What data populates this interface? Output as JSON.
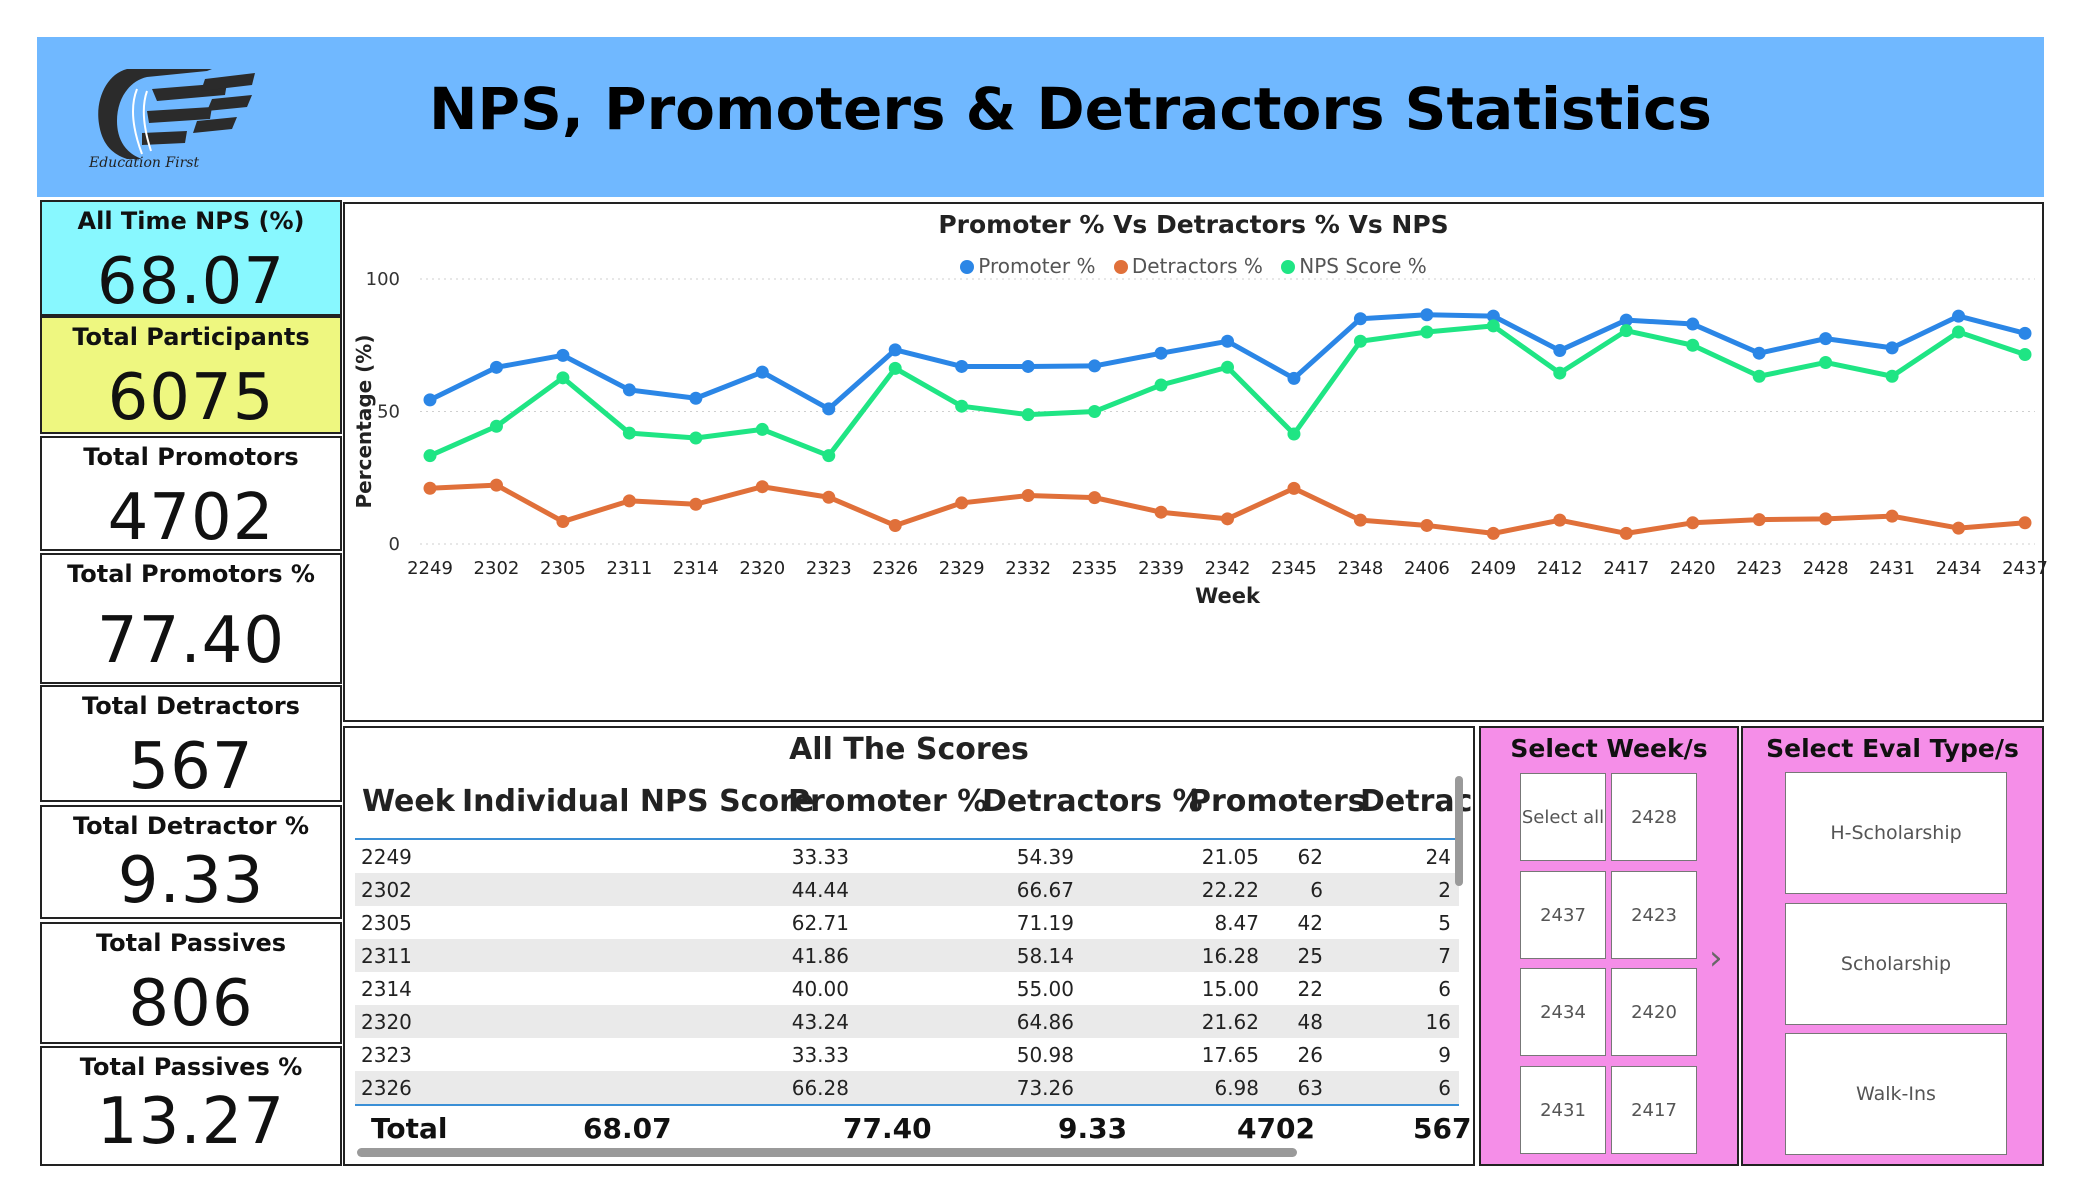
{
  "header": {
    "title": "NPS, Promoters & Detractors Statistics",
    "logo_caption": "Education First"
  },
  "kpis": [
    {
      "label": "All Time NPS (%)",
      "value": "68.07",
      "bg": "#88f8ff"
    },
    {
      "label": "Total Participants",
      "value": "6075",
      "bg": "#eef780"
    },
    {
      "label": "Total Promotors",
      "value": "4702",
      "bg": "#ffffff"
    },
    {
      "label": "Total Promotors %",
      "value": "77.40",
      "bg": "#ffffff"
    },
    {
      "label": "Total Detractors",
      "value": "567",
      "bg": "#ffffff"
    },
    {
      "label": "Total Detractor %",
      "value": "9.33",
      "bg": "#ffffff"
    },
    {
      "label": "Total Passives",
      "value": "806",
      "bg": "#ffffff"
    },
    {
      "label": "Total Passives %",
      "value": "13.27",
      "bg": "#ffffff"
    }
  ],
  "chart_data": {
    "type": "line",
    "title": "Promoter % Vs Detractors % Vs NPS",
    "xlabel": "Week",
    "ylabel": "Percentage (%)",
    "ylim": [
      0,
      100
    ],
    "yticks": [
      "0",
      "50",
      "100"
    ],
    "grid": true,
    "legend_position": "top-center",
    "categories": [
      "2249",
      "2302",
      "2305",
      "2311",
      "2314",
      "2320",
      "2323",
      "2326",
      "2329",
      "2332",
      "2335",
      "2339",
      "2342",
      "2345",
      "2348",
      "2406",
      "2409",
      "2412",
      "2417",
      "2420",
      "2423",
      "2428",
      "2431",
      "2434",
      "2437"
    ],
    "series": [
      {
        "name": "Promoter %",
        "color": "#2b86e6",
        "values": [
          54.39,
          66.67,
          71.19,
          58.14,
          55.0,
          64.86,
          50.98,
          73.26,
          67,
          67,
          67.2,
          72,
          76.5,
          62.5,
          85,
          86.5,
          86,
          73,
          84.5,
          83,
          72,
          77.5,
          74,
          86,
          79.5
        ]
      },
      {
        "name": "Detractors %",
        "color": "#e0703a",
        "values": [
          21.05,
          22.22,
          8.47,
          16.28,
          15.0,
          21.62,
          17.65,
          6.98,
          15.5,
          18.3,
          17.5,
          12,
          9.5,
          21,
          9,
          7,
          4,
          9,
          4,
          8,
          9.2,
          9.5,
          10.5,
          6,
          8
        ]
      },
      {
        "name": "NPS Score %",
        "color": "#1fe584",
        "values": [
          33.33,
          44.44,
          62.71,
          41.86,
          40.0,
          43.24,
          33.33,
          66.28,
          52,
          48.8,
          50,
          60,
          66.7,
          41.5,
          76.5,
          80,
          82.3,
          64.5,
          80.5,
          75,
          63.3,
          68.5,
          63.3,
          80,
          71.5
        ]
      }
    ]
  },
  "table": {
    "title": "All The Scores",
    "columns": [
      "Week",
      "Individual NPS Score",
      "Promoter %",
      "Detractors %",
      "Promoters",
      "Detrac"
    ],
    "rows": [
      [
        "2249",
        "33.33",
        "54.39",
        "21.05",
        "62",
        "24"
      ],
      [
        "2302",
        "44.44",
        "66.67",
        "22.22",
        "6",
        "2"
      ],
      [
        "2305",
        "62.71",
        "71.19",
        "8.47",
        "42",
        "5"
      ],
      [
        "2311",
        "41.86",
        "58.14",
        "16.28",
        "25",
        "7"
      ],
      [
        "2314",
        "40.00",
        "55.00",
        "15.00",
        "22",
        "6"
      ],
      [
        "2320",
        "43.24",
        "64.86",
        "21.62",
        "48",
        "16"
      ],
      [
        "2323",
        "33.33",
        "50.98",
        "17.65",
        "26",
        "9"
      ],
      [
        "2326",
        "66.28",
        "73.26",
        "6.98",
        "63",
        "6"
      ]
    ],
    "total": [
      "Total",
      "68.07",
      "77.40",
      "9.33",
      "4702",
      "567"
    ]
  },
  "week_slicer": {
    "title": "Select Week/s",
    "options": [
      "Select all",
      "2428",
      "2437",
      "2423",
      "2434",
      "2420",
      "2431",
      "2417"
    ]
  },
  "eval_slicer": {
    "title": "Select Eval Type/s",
    "options": [
      "H-Scholarship",
      "Scholarship",
      "Walk-Ins"
    ]
  },
  "colors": {
    "header_bg": "#70b8ff",
    "slicer_bg": "#f58ee8",
    "accent_line": "#3a8fd6"
  }
}
